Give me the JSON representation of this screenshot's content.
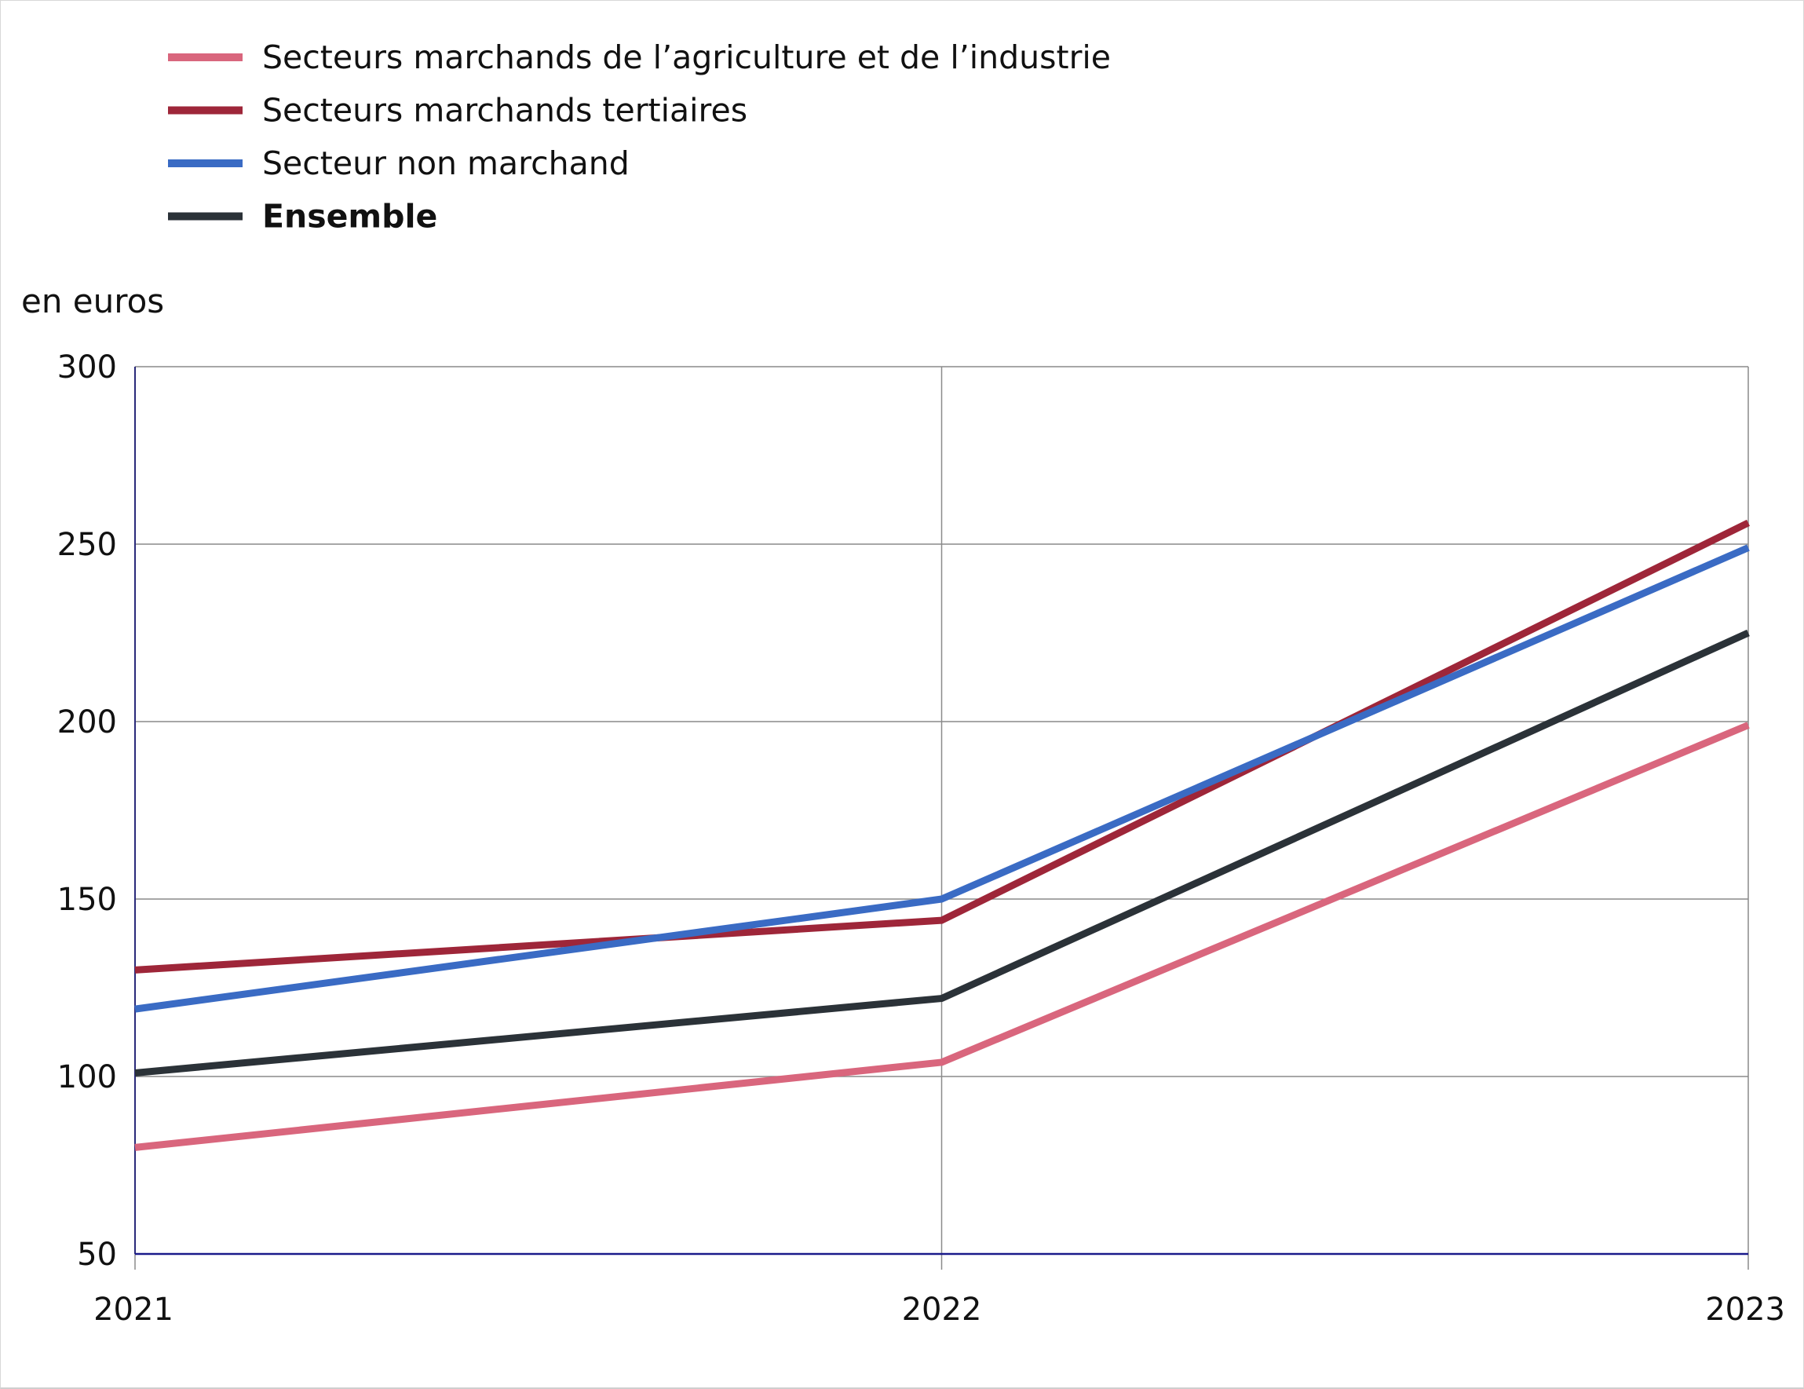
{
  "chart_data": {
    "type": "line",
    "ylabel": "en euros",
    "x": [
      "2021",
      "2022",
      "2023"
    ],
    "ylim": [
      50,
      300
    ],
    "yticks": [
      "300",
      "250",
      "200",
      "150",
      "100",
      "50"
    ],
    "grid": true,
    "legend_position": "top-left",
    "series": [
      {
        "name": "Secteurs marchands de l’agriculture et de l’industrie",
        "color": "#d9667d",
        "bold": false,
        "values": [
          80,
          104,
          199
        ]
      },
      {
        "name": "Secteurs marchands tertiaires",
        "color": "#9e2639",
        "bold": false,
        "values": [
          130,
          144,
          256
        ]
      },
      {
        "name": "Secteur non marchand",
        "color": "#3a6bc4",
        "bold": false,
        "values": [
          119,
          150,
          249
        ]
      },
      {
        "name": "Ensemble",
        "color": "#2b3238",
        "bold": true,
        "values": [
          101,
          122,
          225
        ]
      }
    ]
  }
}
